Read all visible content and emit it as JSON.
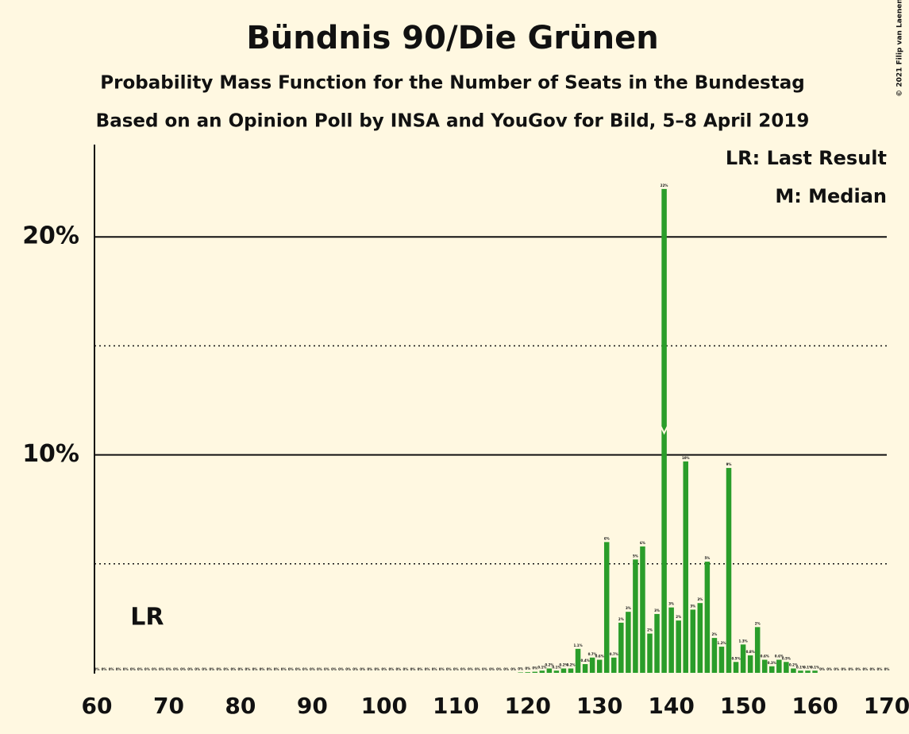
{
  "chart_data": {
    "type": "bar",
    "title": "Bündnis 90/Die Grünen",
    "subtitle": "Probability Mass Function for the Number of Seats in the Bundestag",
    "subtitle2": "Based on an Opinion Poll by INSA and YouGov for Bild, 5–8 April 2019",
    "source": "© 2021 Filip van Laenen",
    "legend_notes": [
      "LR: Last Result",
      "M: Median"
    ],
    "last_result": {
      "label": "LR",
      "x": 67
    },
    "median": 139,
    "color": "#2a9d2a",
    "x": [
      60,
      61,
      62,
      63,
      64,
      65,
      66,
      67,
      68,
      69,
      70,
      71,
      72,
      73,
      74,
      75,
      76,
      77,
      78,
      79,
      80,
      81,
      82,
      83,
      84,
      85,
      86,
      87,
      88,
      89,
      90,
      91,
      92,
      93,
      94,
      95,
      96,
      97,
      98,
      99,
      100,
      101,
      102,
      103,
      104,
      105,
      106,
      107,
      108,
      109,
      110,
      111,
      112,
      113,
      114,
      115,
      116,
      117,
      118,
      119,
      120,
      121,
      122,
      123,
      124,
      125,
      126,
      127,
      128,
      129,
      130,
      131,
      132,
      133,
      134,
      135,
      136,
      137,
      138,
      139,
      140,
      141,
      142,
      143,
      144,
      145,
      146,
      147,
      148,
      149,
      150,
      151,
      152,
      153,
      154,
      155,
      156,
      157,
      158,
      159,
      160,
      161,
      162,
      163,
      164,
      165,
      166,
      167,
      168,
      169,
      170
    ],
    "values": [
      0,
      0,
      0,
      0,
      0,
      0,
      0,
      0,
      0,
      0,
      0,
      0,
      0,
      0,
      0,
      0,
      0,
      0,
      0,
      0,
      0,
      0,
      0,
      0,
      0,
      0,
      0,
      0,
      0,
      0,
      0,
      0,
      0,
      0,
      0,
      0,
      0,
      0,
      0,
      0,
      0,
      0,
      0,
      0,
      0,
      0,
      0,
      0,
      0,
      0,
      0,
      0,
      0,
      0,
      0,
      0,
      0,
      0,
      0,
      0.02,
      0.03,
      0.05,
      0.1,
      0.2,
      0.1,
      0.2,
      0.2,
      1.1,
      0.4,
      0.7,
      0.6,
      6.0,
      0.7,
      2.3,
      2.8,
      5.2,
      5.8,
      1.8,
      2.7,
      22.2,
      3.0,
      2.4,
      9.7,
      2.9,
      3.2,
      5.1,
      1.6,
      1.2,
      9.4,
      0.5,
      1.3,
      0.8,
      2.1,
      0.6,
      0.3,
      0.6,
      0.5,
      0.2,
      0.1,
      0.1,
      0.1,
      0,
      0,
      0,
      0,
      0,
      0,
      0,
      0,
      0,
      0
    ],
    "value_labels": [
      "0%",
      "0%",
      "0%",
      "0%",
      "0%",
      "0%",
      "0%",
      "0%",
      "0%",
      "0%",
      "0%",
      "0%",
      "0%",
      "0%",
      "0%",
      "0%",
      "0%",
      "0%",
      "0%",
      "0%",
      "0%",
      "0%",
      "0%",
      "0%",
      "0%",
      "0%",
      "0%",
      "0%",
      "0%",
      "0%",
      "0%",
      "0%",
      "0%",
      "0%",
      "0%",
      "0%",
      "0%",
      "0%",
      "0%",
      "0%",
      "0%",
      "0%",
      "0%",
      "0%",
      "0%",
      "0%",
      "0%",
      "0%",
      "0%",
      "0%",
      "0%",
      "0%",
      "0%",
      "0%",
      "0%",
      "0%",
      "0%",
      "0%",
      "0%",
      "0%",
      "0%",
      "0%",
      "0.1%",
      "0.2%",
      "0.1%",
      "0.2%",
      "0.2%",
      "1.1%",
      "0.4%",
      "0.7%",
      "0.6%",
      "6%",
      "0.7%",
      "2%",
      "3%",
      "5%",
      "6%",
      "2%",
      "3%",
      "22%",
      "3%",
      "2%",
      "10%",
      "3%",
      "3%",
      "5%",
      "2%",
      "1.2%",
      "9%",
      "0.5%",
      "1.3%",
      "0.8%",
      "2%",
      "0.6%",
      "0.3%",
      "0.6%",
      "0.5%",
      "0.2%",
      "0.1%",
      "0.1%",
      "0.1%",
      "0%",
      "0%",
      "0%",
      "0%",
      "0%",
      "0%",
      "0%",
      "0%",
      "0%",
      "0%"
    ],
    "xlim": [
      60,
      170
    ],
    "xticks": [
      60,
      70,
      80,
      90,
      100,
      110,
      120,
      130,
      140,
      150,
      160,
      170
    ],
    "ylim": [
      0,
      24.2
    ],
    "yticks": [
      {
        "value": 10,
        "label": "10%"
      },
      {
        "value": 20,
        "label": "20%"
      }
    ],
    "minor_gridlines": [
      5,
      15
    ],
    "grid": true
  }
}
